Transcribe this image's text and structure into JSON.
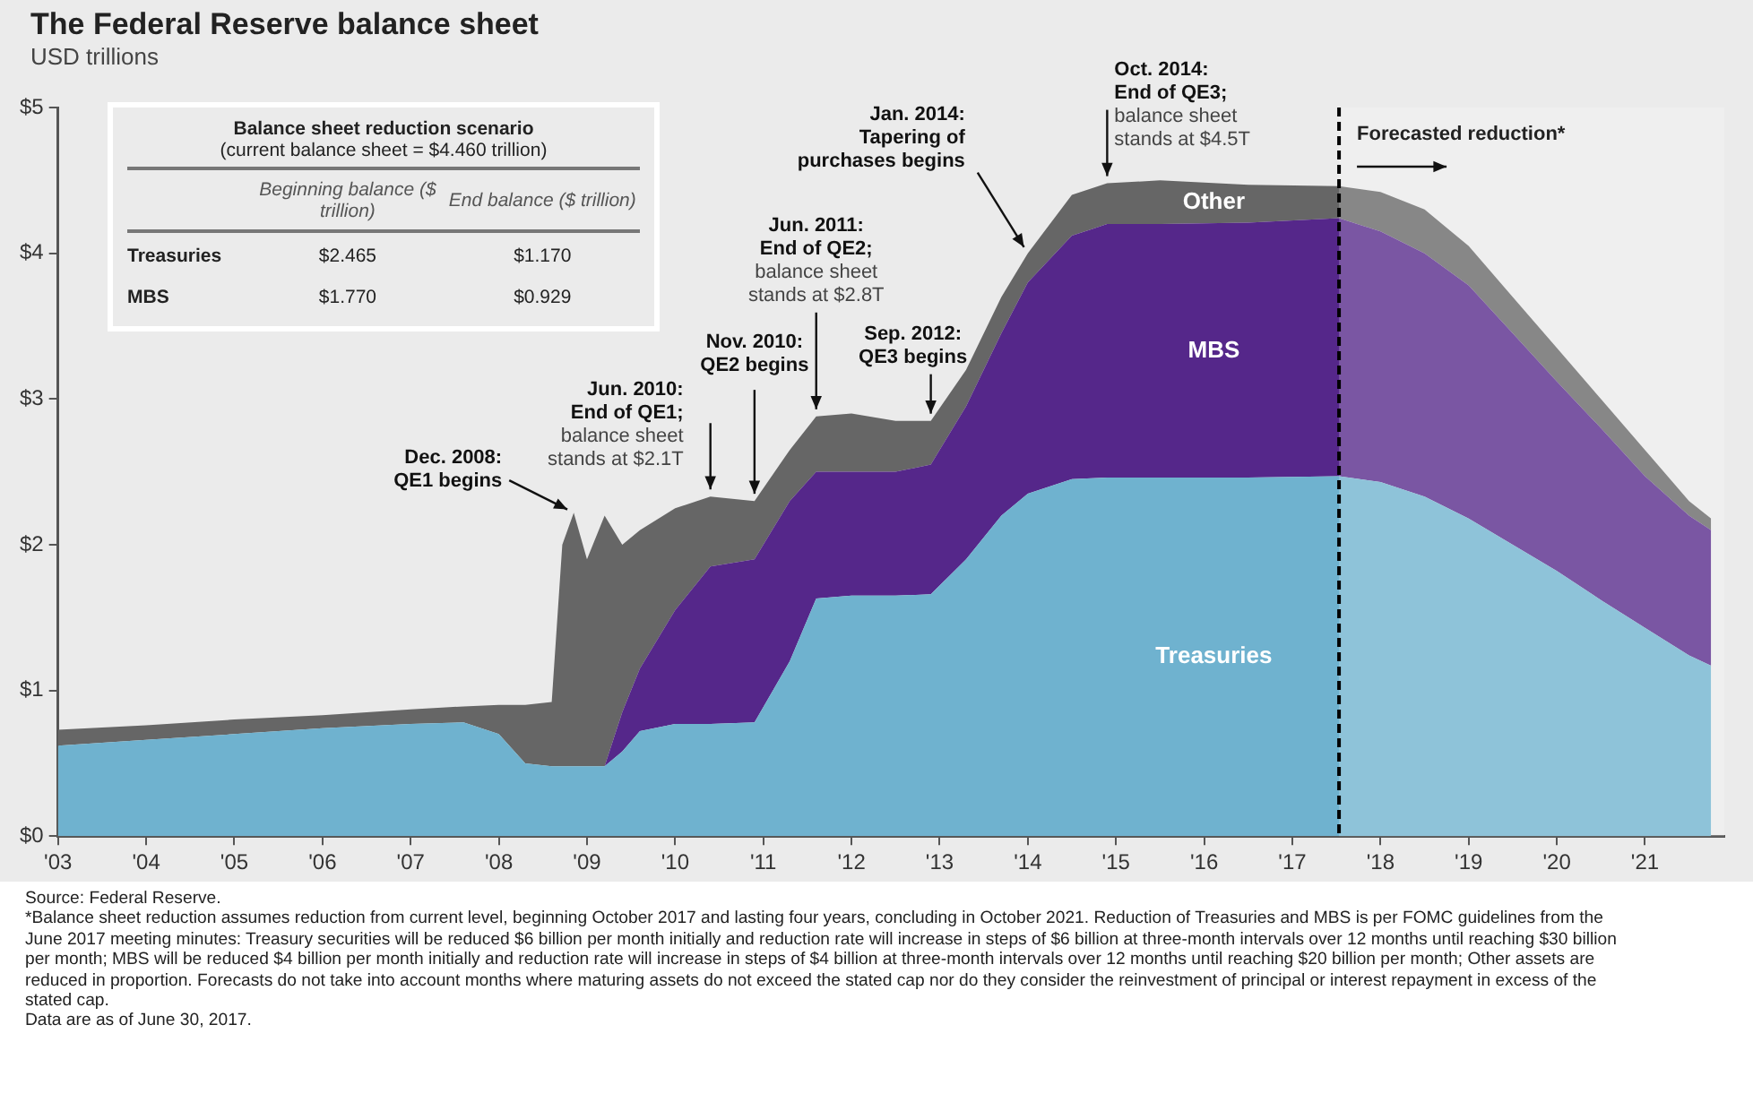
{
  "chart_data": [
    {
      "type": "area",
      "title": "The Federal Reserve balance sheet",
      "subtitle": "USD trillions",
      "stacked": true,
      "legend": false,
      "grid": false,
      "x": [
        2003,
        2004,
        2005,
        2006,
        2007,
        2007.6,
        2008,
        2008.3,
        2008.6,
        2008.72,
        2008.85,
        2009,
        2009.2,
        2009.4,
        2009.6,
        2010,
        2010.4,
        2010.9,
        2011.3,
        2011.6,
        2012,
        2012.5,
        2012.9,
        2013.3,
        2013.7,
        2014,
        2014.5,
        2014.9,
        2015.5,
        2016.5,
        2017.53,
        2018,
        2018.5,
        2019,
        2019.5,
        2020,
        2020.5,
        2021,
        2021.5,
        2021.75
      ],
      "series": [
        {
          "name": "Treasuries",
          "color": "#6fb2cf",
          "values": [
            0.62,
            0.66,
            0.7,
            0.74,
            0.77,
            0.78,
            0.7,
            0.5,
            0.48,
            0.48,
            0.48,
            0.48,
            0.48,
            0.58,
            0.72,
            0.77,
            0.77,
            0.78,
            1.2,
            1.63,
            1.65,
            1.65,
            1.66,
            1.9,
            2.2,
            2.35,
            2.45,
            2.46,
            2.46,
            2.46,
            2.47,
            2.43,
            2.33,
            2.18,
            2.0,
            1.82,
            1.62,
            1.43,
            1.24,
            1.17
          ]
        },
        {
          "name": "MBS",
          "color": "#55278a",
          "values": [
            0,
            0,
            0,
            0,
            0,
            0,
            0,
            0,
            0,
            0,
            0,
            0,
            0,
            0.27,
            0.43,
            0.78,
            1.08,
            1.12,
            1.1,
            0.87,
            0.85,
            0.85,
            0.89,
            1.05,
            1.25,
            1.45,
            1.67,
            1.74,
            1.74,
            1.75,
            1.77,
            1.72,
            1.67,
            1.6,
            1.45,
            1.3,
            1.18,
            1.04,
            0.96,
            0.93
          ]
        },
        {
          "name": "Other",
          "color": "#666666",
          "values": [
            0.11,
            0.1,
            0.1,
            0.09,
            0.1,
            0.11,
            0.2,
            0.4,
            0.44,
            1.52,
            1.74,
            1.42,
            1.72,
            1.15,
            0.95,
            0.7,
            0.48,
            0.4,
            0.35,
            0.38,
            0.4,
            0.35,
            0.3,
            0.25,
            0.25,
            0.2,
            0.28,
            0.28,
            0.3,
            0.26,
            0.22,
            0.27,
            0.3,
            0.27,
            0.25,
            0.23,
            0.2,
            0.18,
            0.1,
            0.08
          ]
        }
      ],
      "xlim": [
        2003,
        2021.9
      ],
      "xticks": [
        {
          "value": 2003,
          "label": "'03"
        },
        {
          "value": 2004,
          "label": "'04"
        },
        {
          "value": 2005,
          "label": "'05"
        },
        {
          "value": 2006,
          "label": "'06"
        },
        {
          "value": 2007,
          "label": "'07"
        },
        {
          "value": 2008,
          "label": "'08"
        },
        {
          "value": 2009,
          "label": "'09"
        },
        {
          "value": 2010,
          "label": "'10"
        },
        {
          "value": 2011,
          "label": "'11"
        },
        {
          "value": 2012,
          "label": "'12"
        },
        {
          "value": 2013,
          "label": "'13"
        },
        {
          "value": 2014,
          "label": "'14"
        },
        {
          "value": 2015,
          "label": "'15"
        },
        {
          "value": 2016,
          "label": "'16"
        },
        {
          "value": 2017,
          "label": "'17"
        },
        {
          "value": 2018,
          "label": "'18"
        },
        {
          "value": 2019,
          "label": "'19"
        },
        {
          "value": 2020,
          "label": "'20"
        },
        {
          "value": 2021,
          "label": "'21"
        }
      ],
      "ylim": [
        0,
        5
      ],
      "yticks": [
        {
          "value": 0,
          "label": "$0"
        },
        {
          "value": 1,
          "label": "$1"
        },
        {
          "value": 2,
          "label": "$2"
        },
        {
          "value": 3,
          "label": "$3"
        },
        {
          "value": 4,
          "label": "$4"
        },
        {
          "value": 5,
          "label": "$5"
        }
      ],
      "ref_lines": [
        {
          "axis": "x",
          "value": 2017.53,
          "label": "Forecasted reduction*",
          "color": "#000000",
          "line_style": "dashed"
        }
      ],
      "bands": [
        {
          "axis": "x",
          "from": 2017.53,
          "to": 2021.9,
          "color": "#ffffff"
        }
      ],
      "annotations": [
        {
          "text": "Dec. 2008:\nQE1 begins",
          "x": 2008.85,
          "y": 2.22
        },
        {
          "text": "Jun. 2010:\nEnd of QE1;\nbalance sheet\nstands at $2.1T",
          "x": 2010.4,
          "y": 2.33
        },
        {
          "text": "Nov. 2010:\nQE2 begins",
          "x": 2010.9,
          "y": 2.3
        },
        {
          "text": "Jun. 2011:\nEnd of QE2;\nbalance sheet\nstands at $2.8T",
          "x": 2011.6,
          "y": 2.88
        },
        {
          "text": "Sep. 2012:\nQE3 begins",
          "x": 2012.9,
          "y": 2.85
        },
        {
          "text": "Jan. 2014:\nTapering of\npurchases begins",
          "x": 2014,
          "y": 4.0
        },
        {
          "text": "Oct. 2014:\nEnd of QE3;\nbalance sheet\nstands at $4.5T",
          "x": 2014.9,
          "y": 4.48
        },
        "Source: Federal Reserve.",
        "*Balance sheet reduction assumes reduction from current level, beginning October 2017 and lasting four years, concluding in October 2021. Reduction of Treasuries and MBS is per FOMC guidelines from the June 2017 meeting minutes: Treasury securities will be reduced $6 billion per month initially and reduction rate will increase in steps of $6 billion at three-month intervals over 12 months until reaching $30 billion per month; MBS will be reduced $4 billion per month initially and reduction rate will increase in steps of $4 billion at three-month intervals over 12 months until reaching $20 billion per month; Other assets are reduced in proportion. Forecasts do not take into account months where maturing assets do not exceed the stated cap nor do they consider the reinvestment of principal or interest repayment in excess of the stated cap.",
        "Data are as of June 30, 2017."
      ]
    },
    {
      "type": "other",
      "title": "Balance sheet reduction scenario",
      "subtitle": "(current balance sheet = $4.460 trillion)",
      "categories": [
        "Treasuries",
        "MBS"
      ],
      "series": [
        {
          "name": "Beginning balance ($ trillion)",
          "values": [
            2.465,
            1.77
          ],
          "value_labels": [
            "$2.465",
            "$1.770"
          ]
        },
        {
          "name": "End balance ($ trillion)",
          "values": [
            1.17,
            0.929
          ],
          "value_labels": [
            "$1.170",
            "$0.929"
          ]
        }
      ]
    }
  ]
}
